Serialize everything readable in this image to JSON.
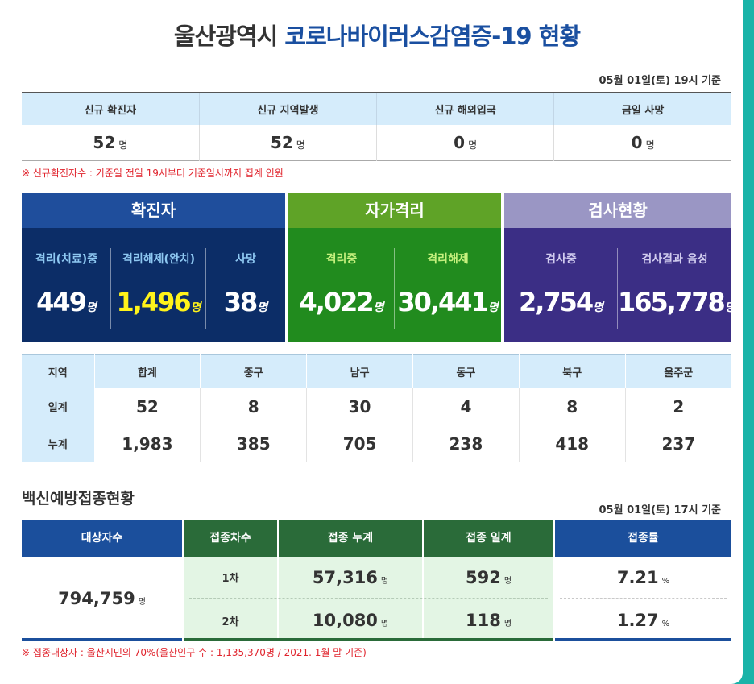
{
  "header": {
    "title_prefix": "울산광역시",
    "title_highlight": "코로나바이러스감염증-19 현황",
    "stamp": "05월 01일(토) 19시 기준"
  },
  "summary": {
    "headers": [
      "신규 확진자",
      "신규 지역발생",
      "신규 해외입국",
      "금일 사망"
    ],
    "values": [
      "52",
      "52",
      "0",
      "0"
    ],
    "unit": "명",
    "note": "※ 신규확진자수 : 기준일 전일 19시부터 기준일시까지 집계 인원"
  },
  "panels": {
    "confirmed": {
      "title": "확진자",
      "items": [
        {
          "label": "격리(치료)중",
          "value": "449",
          "unit": "명"
        },
        {
          "label": "격리해제(완치)",
          "value": "1,496",
          "unit": "명"
        },
        {
          "label": "사망",
          "value": "38",
          "unit": "명"
        }
      ]
    },
    "quarantine": {
      "title": "자가격리",
      "items": [
        {
          "label": "격리중",
          "value": "4,022",
          "unit": "명"
        },
        {
          "label": "격리해제",
          "value": "30,441",
          "unit": "명"
        }
      ]
    },
    "testing": {
      "title": "검사현황",
      "items": [
        {
          "label": "검사중",
          "value": "2,754",
          "unit": "명"
        },
        {
          "label": "검사결과 음성",
          "value": "165,778",
          "unit": "명"
        }
      ]
    }
  },
  "regions": {
    "headers": [
      "지역",
      "합계",
      "중구",
      "남구",
      "동구",
      "북구",
      "울주군"
    ],
    "rows": [
      {
        "label": "일계",
        "values": [
          "52",
          "8",
          "30",
          "4",
          "8",
          "2"
        ]
      },
      {
        "label": "누계",
        "values": [
          "1,983",
          "385",
          "705",
          "238",
          "418",
          "237"
        ]
      }
    ]
  },
  "vaccine": {
    "section_title": "백신예방접종현황",
    "stamp": "05월 01일(토) 17시 기준",
    "headers": [
      "대상자수",
      "접종차수",
      "접종 누계",
      "접종 일계",
      "접종률"
    ],
    "target": "794,759",
    "target_unit": "명",
    "rows": [
      {
        "dose": "1차",
        "total": "57,316",
        "daily": "592",
        "rate": "7.21"
      },
      {
        "dose": "2차",
        "total": "10,080",
        "daily": "118",
        "rate": "1.27"
      }
    ],
    "unit": "명",
    "rate_unit": "%",
    "note": "※ 접종대상자 : 울산시민의 70%(울산인구 수 : 1,135,370명 / 2021. 1월 말 기준)"
  }
}
